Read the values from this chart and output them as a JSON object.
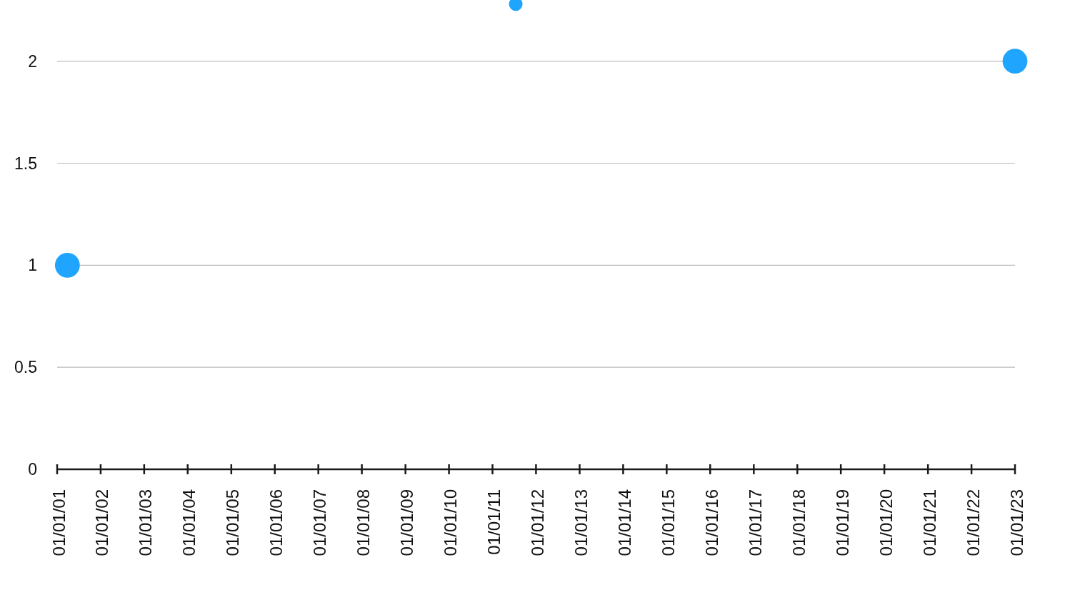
{
  "chart_data": {
    "type": "bubble",
    "x": [
      "2001-03-28",
      "2011-07-15",
      "2023-01-01"
    ],
    "values": [
      1,
      2.28,
      2
    ],
    "sizes": [
      1,
      0.3,
      1
    ],
    "color": "#1fa5fd",
    "xlim": [
      "2001-01-01",
      "2023-01-01"
    ],
    "xticks": [
      {
        "value": "2001-01-01",
        "label": "01/01/01"
      },
      {
        "value": "2002-01-01",
        "label": "01/01/02"
      },
      {
        "value": "2003-01-01",
        "label": "01/01/03"
      },
      {
        "value": "2004-01-01",
        "label": "01/01/04"
      },
      {
        "value": "2005-01-01",
        "label": "01/01/05"
      },
      {
        "value": "2006-01-01",
        "label": "01/01/06"
      },
      {
        "value": "2007-01-01",
        "label": "01/01/07"
      },
      {
        "value": "2008-01-01",
        "label": "01/01/08"
      },
      {
        "value": "2009-01-01",
        "label": "01/01/09"
      },
      {
        "value": "2010-01-01",
        "label": "01/01/10"
      },
      {
        "value": "2011-01-01",
        "label": "01/01/11"
      },
      {
        "value": "2012-01-01",
        "label": "01/01/12"
      },
      {
        "value": "2013-01-01",
        "label": "01/01/13"
      },
      {
        "value": "2014-01-01",
        "label": "01/01/14"
      },
      {
        "value": "2015-01-01",
        "label": "01/01/15"
      },
      {
        "value": "2016-01-01",
        "label": "01/01/16"
      },
      {
        "value": "2017-01-01",
        "label": "01/01/17"
      },
      {
        "value": "2018-01-01",
        "label": "01/01/18"
      },
      {
        "value": "2019-01-01",
        "label": "01/01/19"
      },
      {
        "value": "2020-01-01",
        "label": "01/01/20"
      },
      {
        "value": "2021-01-01",
        "label": "01/01/21"
      },
      {
        "value": "2022-01-01",
        "label": "01/01/22"
      },
      {
        "value": "2023-01-01",
        "label": "01/01/23"
      }
    ],
    "ylim": [
      0,
      2.3
    ],
    "yticks": [
      0,
      0.5,
      1,
      1.5,
      2
    ],
    "grid": "y"
  }
}
